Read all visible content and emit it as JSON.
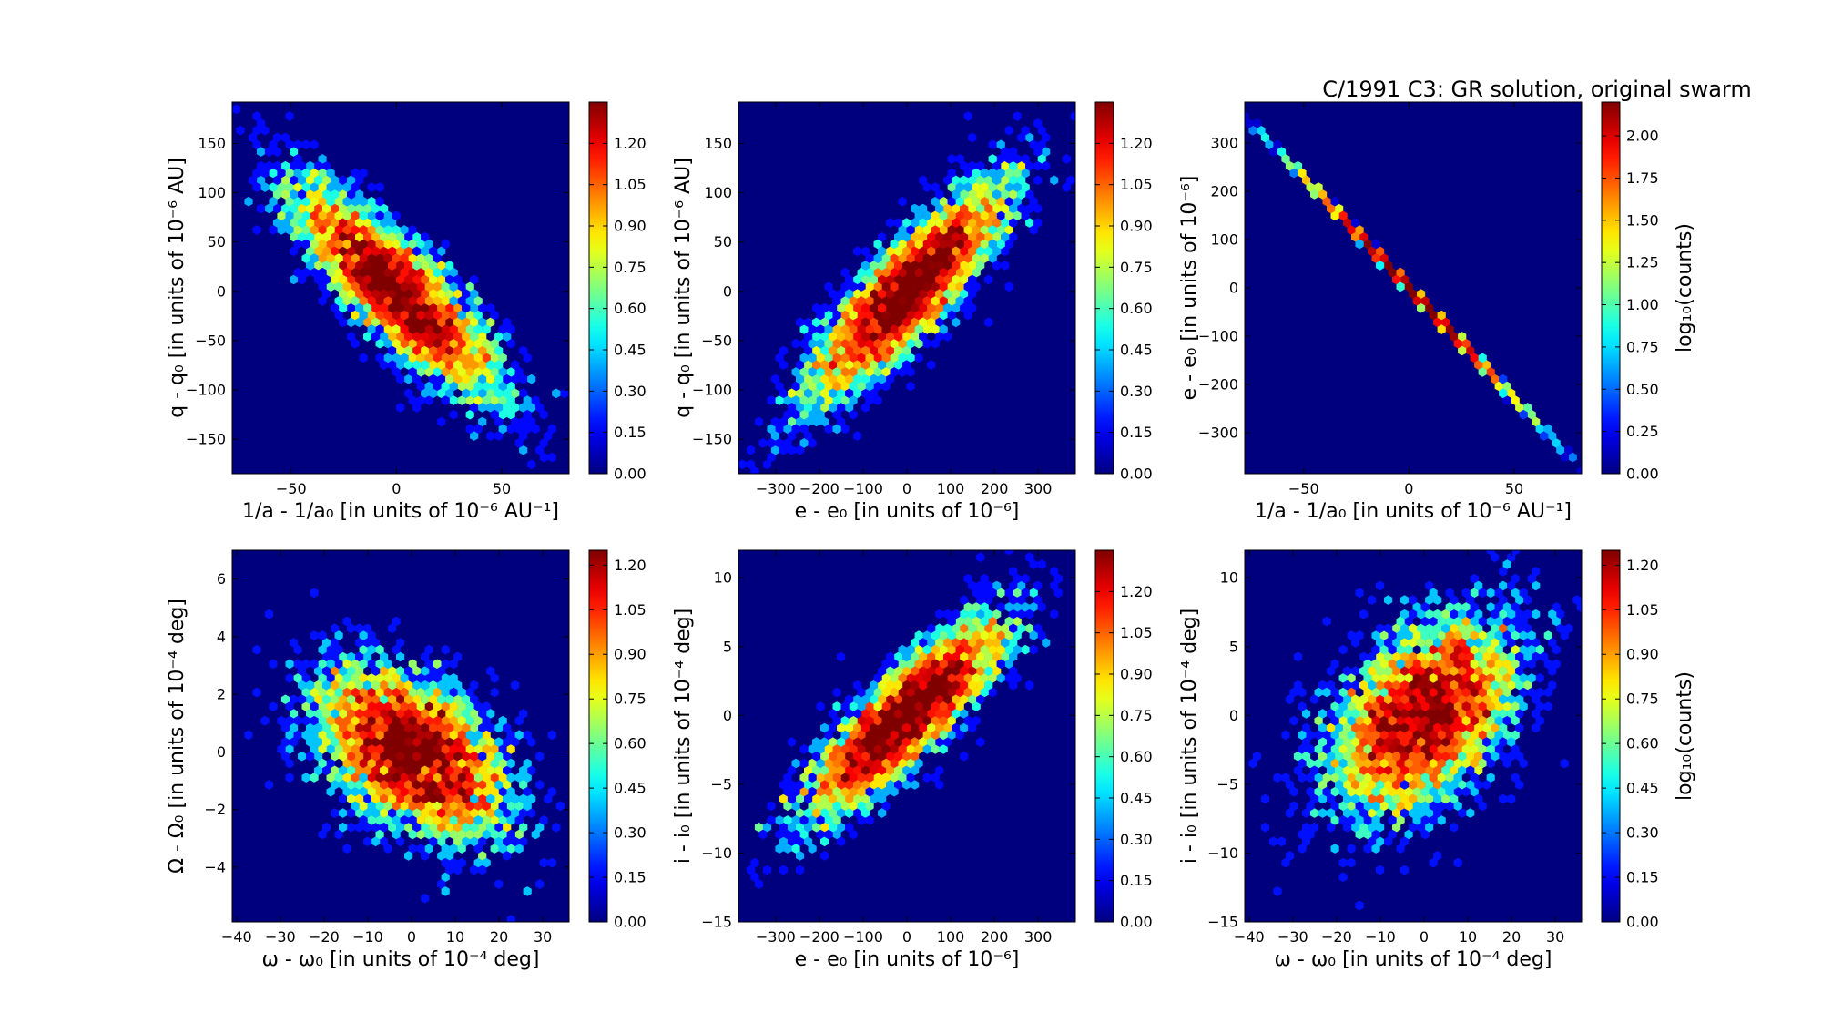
{
  "figure": {
    "title": "C/1991 C3:  GR solution, original swarm"
  },
  "chart_data": [
    {
      "type": "heatmap",
      "subtype": "hexbin",
      "xlabel": "1/a - 1/a₀ [in units of 10⁻⁶ AU⁻¹]",
      "ylabel": "q - q₀ [in units of 10⁻⁶ AU]",
      "xlim": [
        -78,
        82
      ],
      "ylim": [
        -185,
        192
      ],
      "xticks": [
        -50,
        0,
        50
      ],
      "yticks": [
        -150,
        -100,
        -50,
        0,
        50,
        100,
        150
      ],
      "distribution": {
        "center": [
          0,
          0
        ],
        "sigma": [
          25,
          55
        ],
        "correlation": -0.85,
        "samples": 4200
      },
      "colorbar": {
        "label": "",
        "range": [
          0,
          1.35
        ],
        "ticks": [
          "0.00",
          "0.15",
          "0.30",
          "0.45",
          "0.60",
          "0.75",
          "0.90",
          "1.05",
          "1.20"
        ]
      }
    },
    {
      "type": "heatmap",
      "subtype": "hexbin",
      "xlabel": "e - e₀ [in units of 10⁻⁶]",
      "ylabel": "q - q₀ [in units of 10⁻⁶ AU]",
      "xlim": [
        -385,
        385
      ],
      "ylim": [
        -185,
        192
      ],
      "xticks": [
        -300,
        -200,
        -100,
        0,
        100,
        200,
        300
      ],
      "yticks": [
        -150,
        -100,
        -50,
        0,
        50,
        100,
        150
      ],
      "distribution": {
        "center": [
          0,
          0
        ],
        "sigma": [
          115,
          55
        ],
        "correlation": 0.85,
        "samples": 4200
      },
      "colorbar": {
        "label": "",
        "range": [
          0,
          1.35
        ],
        "ticks": [
          "0.00",
          "0.15",
          "0.30",
          "0.45",
          "0.60",
          "0.75",
          "0.90",
          "1.05",
          "1.20"
        ]
      }
    },
    {
      "type": "heatmap",
      "subtype": "hexbin",
      "xlabel": "1/a - 1/a₀ [in units of 10⁻⁶ AU⁻¹]",
      "ylabel": "e - e₀ [in units of 10⁻⁶]",
      "xlim": [
        -78,
        82
      ],
      "ylim": [
        -385,
        385
      ],
      "xticks": [
        -50,
        0,
        50
      ],
      "yticks": [
        -300,
        -200,
        -100,
        0,
        100,
        200,
        300
      ],
      "distribution": {
        "center": [
          0,
          0
        ],
        "sigma": [
          25,
          115
        ],
        "correlation": -0.9999,
        "samples": 4200
      },
      "colorbar": {
        "label": "log₁₀(counts)",
        "range": [
          0,
          2.2
        ],
        "ticks": [
          "0.00",
          "0.25",
          "0.50",
          "0.75",
          "1.00",
          "1.25",
          "1.50",
          "1.75",
          "2.00"
        ]
      }
    },
    {
      "type": "heatmap",
      "subtype": "hexbin",
      "xlabel": "ω - ω₀ [in units of 10⁻⁴ deg]",
      "ylabel": "Ω - Ω₀ [in units of 10⁻⁴ deg]",
      "xlim": [
        -41,
        36
      ],
      "ylim": [
        -5.9,
        7
      ],
      "xticks": [
        -40,
        -30,
        -20,
        -10,
        0,
        10,
        20,
        30
      ],
      "yticks": [
        -4,
        -2,
        0,
        2,
        4,
        6
      ],
      "distribution": {
        "center": [
          0,
          0
        ],
        "sigma": [
          11,
          1.5
        ],
        "correlation": -0.45,
        "samples": 4200
      },
      "colorbar": {
        "label": "",
        "range": [
          0,
          1.25
        ],
        "ticks": [
          "0.00",
          "0.15",
          "0.30",
          "0.45",
          "0.60",
          "0.75",
          "0.90",
          "1.05",
          "1.20"
        ]
      }
    },
    {
      "type": "heatmap",
      "subtype": "hexbin",
      "xlabel": "e - e₀ [in units of 10⁻⁶]",
      "ylabel": "i - i₀ [in units of 10⁻⁴ deg]",
      "xlim": [
        -385,
        385
      ],
      "ylim": [
        -15,
        12
      ],
      "xticks": [
        -300,
        -200,
        -100,
        0,
        100,
        200,
        300
      ],
      "yticks": [
        -15,
        -10,
        -5,
        0,
        5,
        10
      ],
      "distribution": {
        "center": [
          0,
          0
        ],
        "sigma": [
          115,
          3.6
        ],
        "correlation": 0.85,
        "samples": 4200
      },
      "colorbar": {
        "label": "",
        "range": [
          0,
          1.35
        ],
        "ticks": [
          "0.00",
          "0.15",
          "0.30",
          "0.45",
          "0.60",
          "0.75",
          "0.90",
          "1.05",
          "1.20"
        ]
      }
    },
    {
      "type": "heatmap",
      "subtype": "hexbin",
      "xlabel": "ω - ω₀ [in units of 10⁻⁴ deg]",
      "ylabel": "i - i₀ [in units of 10⁻⁴ deg]",
      "xlim": [
        -41,
        36
      ],
      "ylim": [
        -15,
        12
      ],
      "xticks": [
        -40,
        -30,
        -20,
        -10,
        0,
        10,
        20,
        30
      ],
      "yticks": [
        -15,
        -10,
        -5,
        0,
        5,
        10
      ],
      "distribution": {
        "center": [
          0,
          0
        ],
        "sigma": [
          11,
          3.6
        ],
        "correlation": 0.45,
        "samples": 4200
      },
      "colorbar": {
        "label": "log₁₀(counts)",
        "range": [
          0,
          1.25
        ],
        "ticks": [
          "0.00",
          "0.15",
          "0.30",
          "0.45",
          "0.60",
          "0.75",
          "0.90",
          "1.05",
          "1.20"
        ]
      }
    }
  ]
}
